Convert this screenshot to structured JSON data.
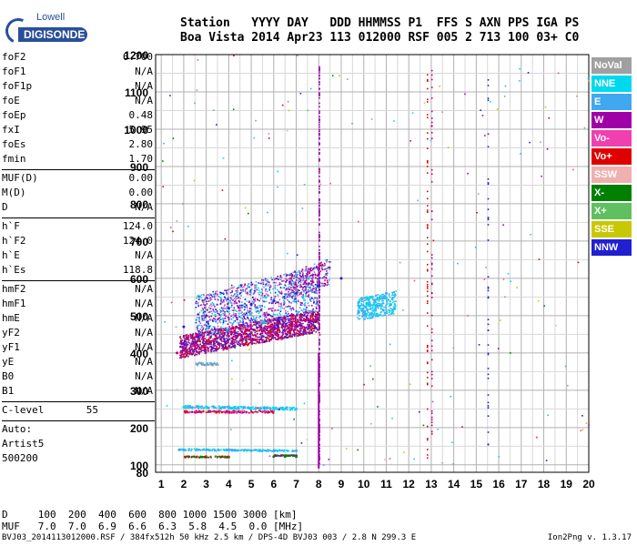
{
  "logo": {
    "top": "Lowell",
    "main": "DIGISONDE"
  },
  "header": {
    "row1": "Station   YYYY DAY   DDD HHMMSS P1  FFS S AXN PPS IGA PS",
    "row2": "Boa Vista 2014 Apr23 113 012000 RSF 005 2 713 100 03+ C0"
  },
  "params_group1": [
    {
      "k": "foF2",
      "v": "6.700"
    },
    {
      "k": "foF1",
      "v": "N/A"
    },
    {
      "k": "foF1p",
      "v": "N/A"
    },
    {
      "k": "foE",
      "v": "N/A"
    },
    {
      "k": "foEp",
      "v": "0.48"
    },
    {
      "k": "fxI",
      "v": "5.95"
    },
    {
      "k": "foEs",
      "v": "2.80"
    },
    {
      "k": "fmin",
      "v": "1.70"
    }
  ],
  "params_group2": [
    {
      "k": "MUF(D)",
      "v": "0.00"
    },
    {
      "k": "M(D)",
      "v": "0.00"
    },
    {
      "k": "D",
      "v": "N/A"
    }
  ],
  "params_group3": [
    {
      "k": "h`F",
      "v": "124.0"
    },
    {
      "k": "h`F2",
      "v": "124.0"
    },
    {
      "k": "h`E",
      "v": "N/A"
    },
    {
      "k": "h`Es",
      "v": "118.8"
    }
  ],
  "params_group4": [
    {
      "k": "hmF2",
      "v": "N/A"
    },
    {
      "k": "hmF1",
      "v": "N/A"
    },
    {
      "k": "hmE",
      "v": "N/A"
    },
    {
      "k": "yF2",
      "v": "N/A"
    },
    {
      "k": "yF1",
      "v": "N/A"
    },
    {
      "k": "yE",
      "v": "N/A"
    },
    {
      "k": "B0",
      "v": "N/A"
    },
    {
      "k": "B1",
      "v": "N/A"
    }
  ],
  "clevel": {
    "k": "C-level",
    "v": "55"
  },
  "auto": {
    "l1": "Auto:",
    "l2": "Artist5",
    "l3": "500200"
  },
  "muf_table": {
    "row_d": "D     100  200  400  600  800 1000 1500 3000 [km]",
    "row_muf": "MUF   7.0  7.0  6.9  6.6  6.3  5.8  4.5  0.0 [MHz]"
  },
  "footer": {
    "left": "BVJ03_2014113012000.RSF / 384fx512h 50 kHz 2.5 km / DPS-4D BVJ03 003 / 2.8 N 299.3 E",
    "right": "Ion2Png v. 1.3.17"
  },
  "legend": [
    {
      "label": "NoVal",
      "color": "#a0a0a0"
    },
    {
      "label": "NNE",
      "color": "#00d8f0"
    },
    {
      "label": "E",
      "color": "#40a8f0"
    },
    {
      "label": "W",
      "color": "#a000a8"
    },
    {
      "label": "Vo-",
      "color": "#f040b0"
    },
    {
      "label": "Vo+",
      "color": "#e00000"
    },
    {
      "label": "SSW",
      "color": "#f0b0b0"
    },
    {
      "label": "X-",
      "color": "#008000"
    },
    {
      "label": "X+",
      "color": "#60c060"
    },
    {
      "label": "SSE",
      "color": "#c8c800"
    },
    {
      "label": "NNW",
      "color": "#2020d0"
    }
  ],
  "chart_data": {
    "type": "scatter",
    "title": "",
    "xlabel": "",
    "ylabel": "",
    "xlim": [
      0.75,
      20
    ],
    "ylim": [
      80,
      1200
    ],
    "x_ticks": [
      1,
      2,
      3,
      4,
      5,
      6,
      7,
      8,
      9,
      10,
      11,
      12,
      13,
      14,
      15,
      16,
      17,
      18,
      19,
      20
    ],
    "y_ticks": [
      80,
      100,
      200,
      300,
      400,
      500,
      600,
      700,
      800,
      900,
      1000,
      1100,
      1200
    ],
    "grid": true,
    "traces": [
      {
        "name": "F-layer trace",
        "color": "#c00080",
        "x": [
          1.7,
          2.0,
          2.5,
          3.0,
          3.5,
          4.0,
          4.5,
          5.0,
          5.5,
          6.0,
          6.5,
          7.0,
          7.5,
          7.9
        ],
        "y": [
          400,
          410,
          420,
          430,
          440,
          445,
          450,
          455,
          460,
          465,
          470,
          480,
          490,
          500
        ]
      },
      {
        "name": "F-layer echoes",
        "color": "#2020d0",
        "x": [
          2.0,
          3.0,
          4.0,
          5.0,
          6.0,
          7.0,
          8.0,
          9.0
        ],
        "y": [
          470,
          500,
          520,
          530,
          540,
          560,
          580,
          600
        ]
      },
      {
        "name": "E-region echoes",
        "color": "#40a8f0",
        "x": [
          10.0,
          10.5,
          11.0,
          11.2
        ],
        "y": [
          510,
          540,
          560,
          530
        ]
      },
      {
        "name": "Es 250 km",
        "color": "#00d8f0",
        "x": [
          2.0,
          3.0,
          4.0,
          5.0,
          6.0,
          7.0
        ],
        "y": [
          255,
          255,
          252,
          252,
          250,
          250
        ]
      },
      {
        "name": "Es 130 km",
        "color": "#40a8f0",
        "x": [
          1.8,
          3.0,
          4.0,
          5.0,
          6.0,
          7.0
        ],
        "y": [
          140,
          140,
          140,
          138,
          138,
          138
        ]
      },
      {
        "name": "Es 120 km",
        "color": "#008000",
        "x": [
          6.0,
          6.5,
          7.0
        ],
        "y": [
          122,
          122,
          122
        ]
      }
    ]
  }
}
